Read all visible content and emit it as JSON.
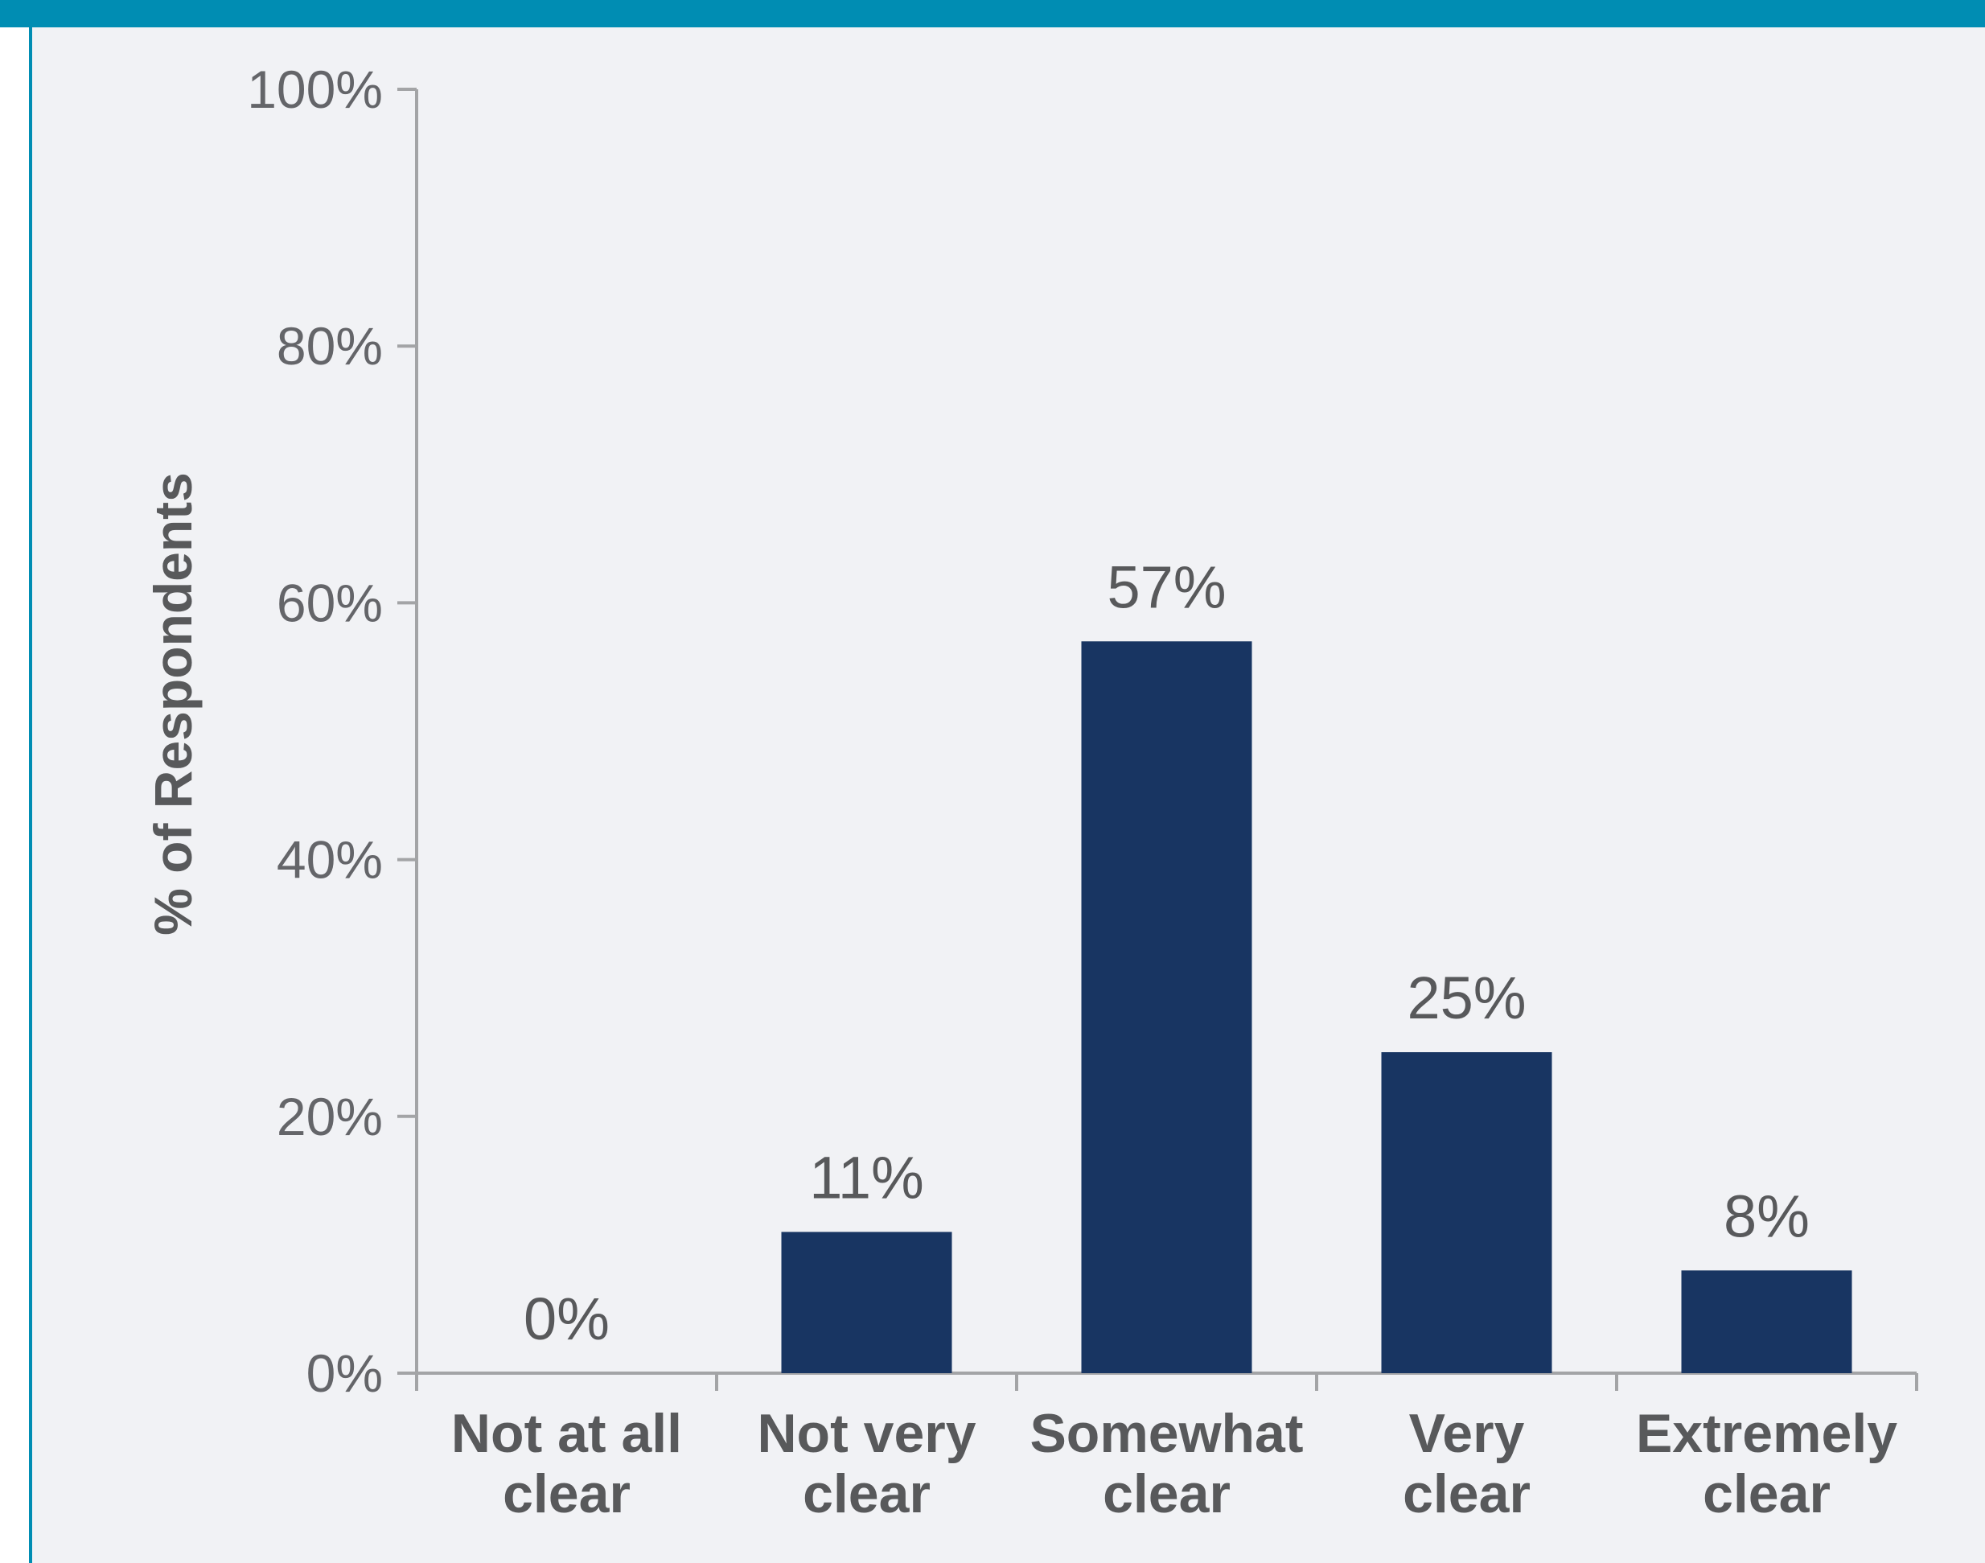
{
  "colors": {
    "accent": "#008db3",
    "panel_background": "#f1f2f5",
    "bar": "#183562",
    "axis": "#a3a4a6",
    "text": "#58595b"
  },
  "chart_data": {
    "type": "bar",
    "title": "",
    "xlabel": "",
    "ylabel": "% of Respondents",
    "ylim": [
      0,
      100
    ],
    "yticks": [
      "0%",
      "20%",
      "40%",
      "60%",
      "80%",
      "100%"
    ],
    "categories": [
      [
        "Not at all",
        "clear"
      ],
      [
        "Not very",
        "clear"
      ],
      [
        "Somewhat",
        "clear"
      ],
      [
        "Very",
        "clear"
      ],
      [
        "Extremely",
        "clear"
      ]
    ],
    "values": [
      0,
      11,
      57,
      25,
      8
    ],
    "data_labels": [
      "0%",
      "11%",
      "57%",
      "25%",
      "8%"
    ],
    "grid": false,
    "legend": "none"
  }
}
